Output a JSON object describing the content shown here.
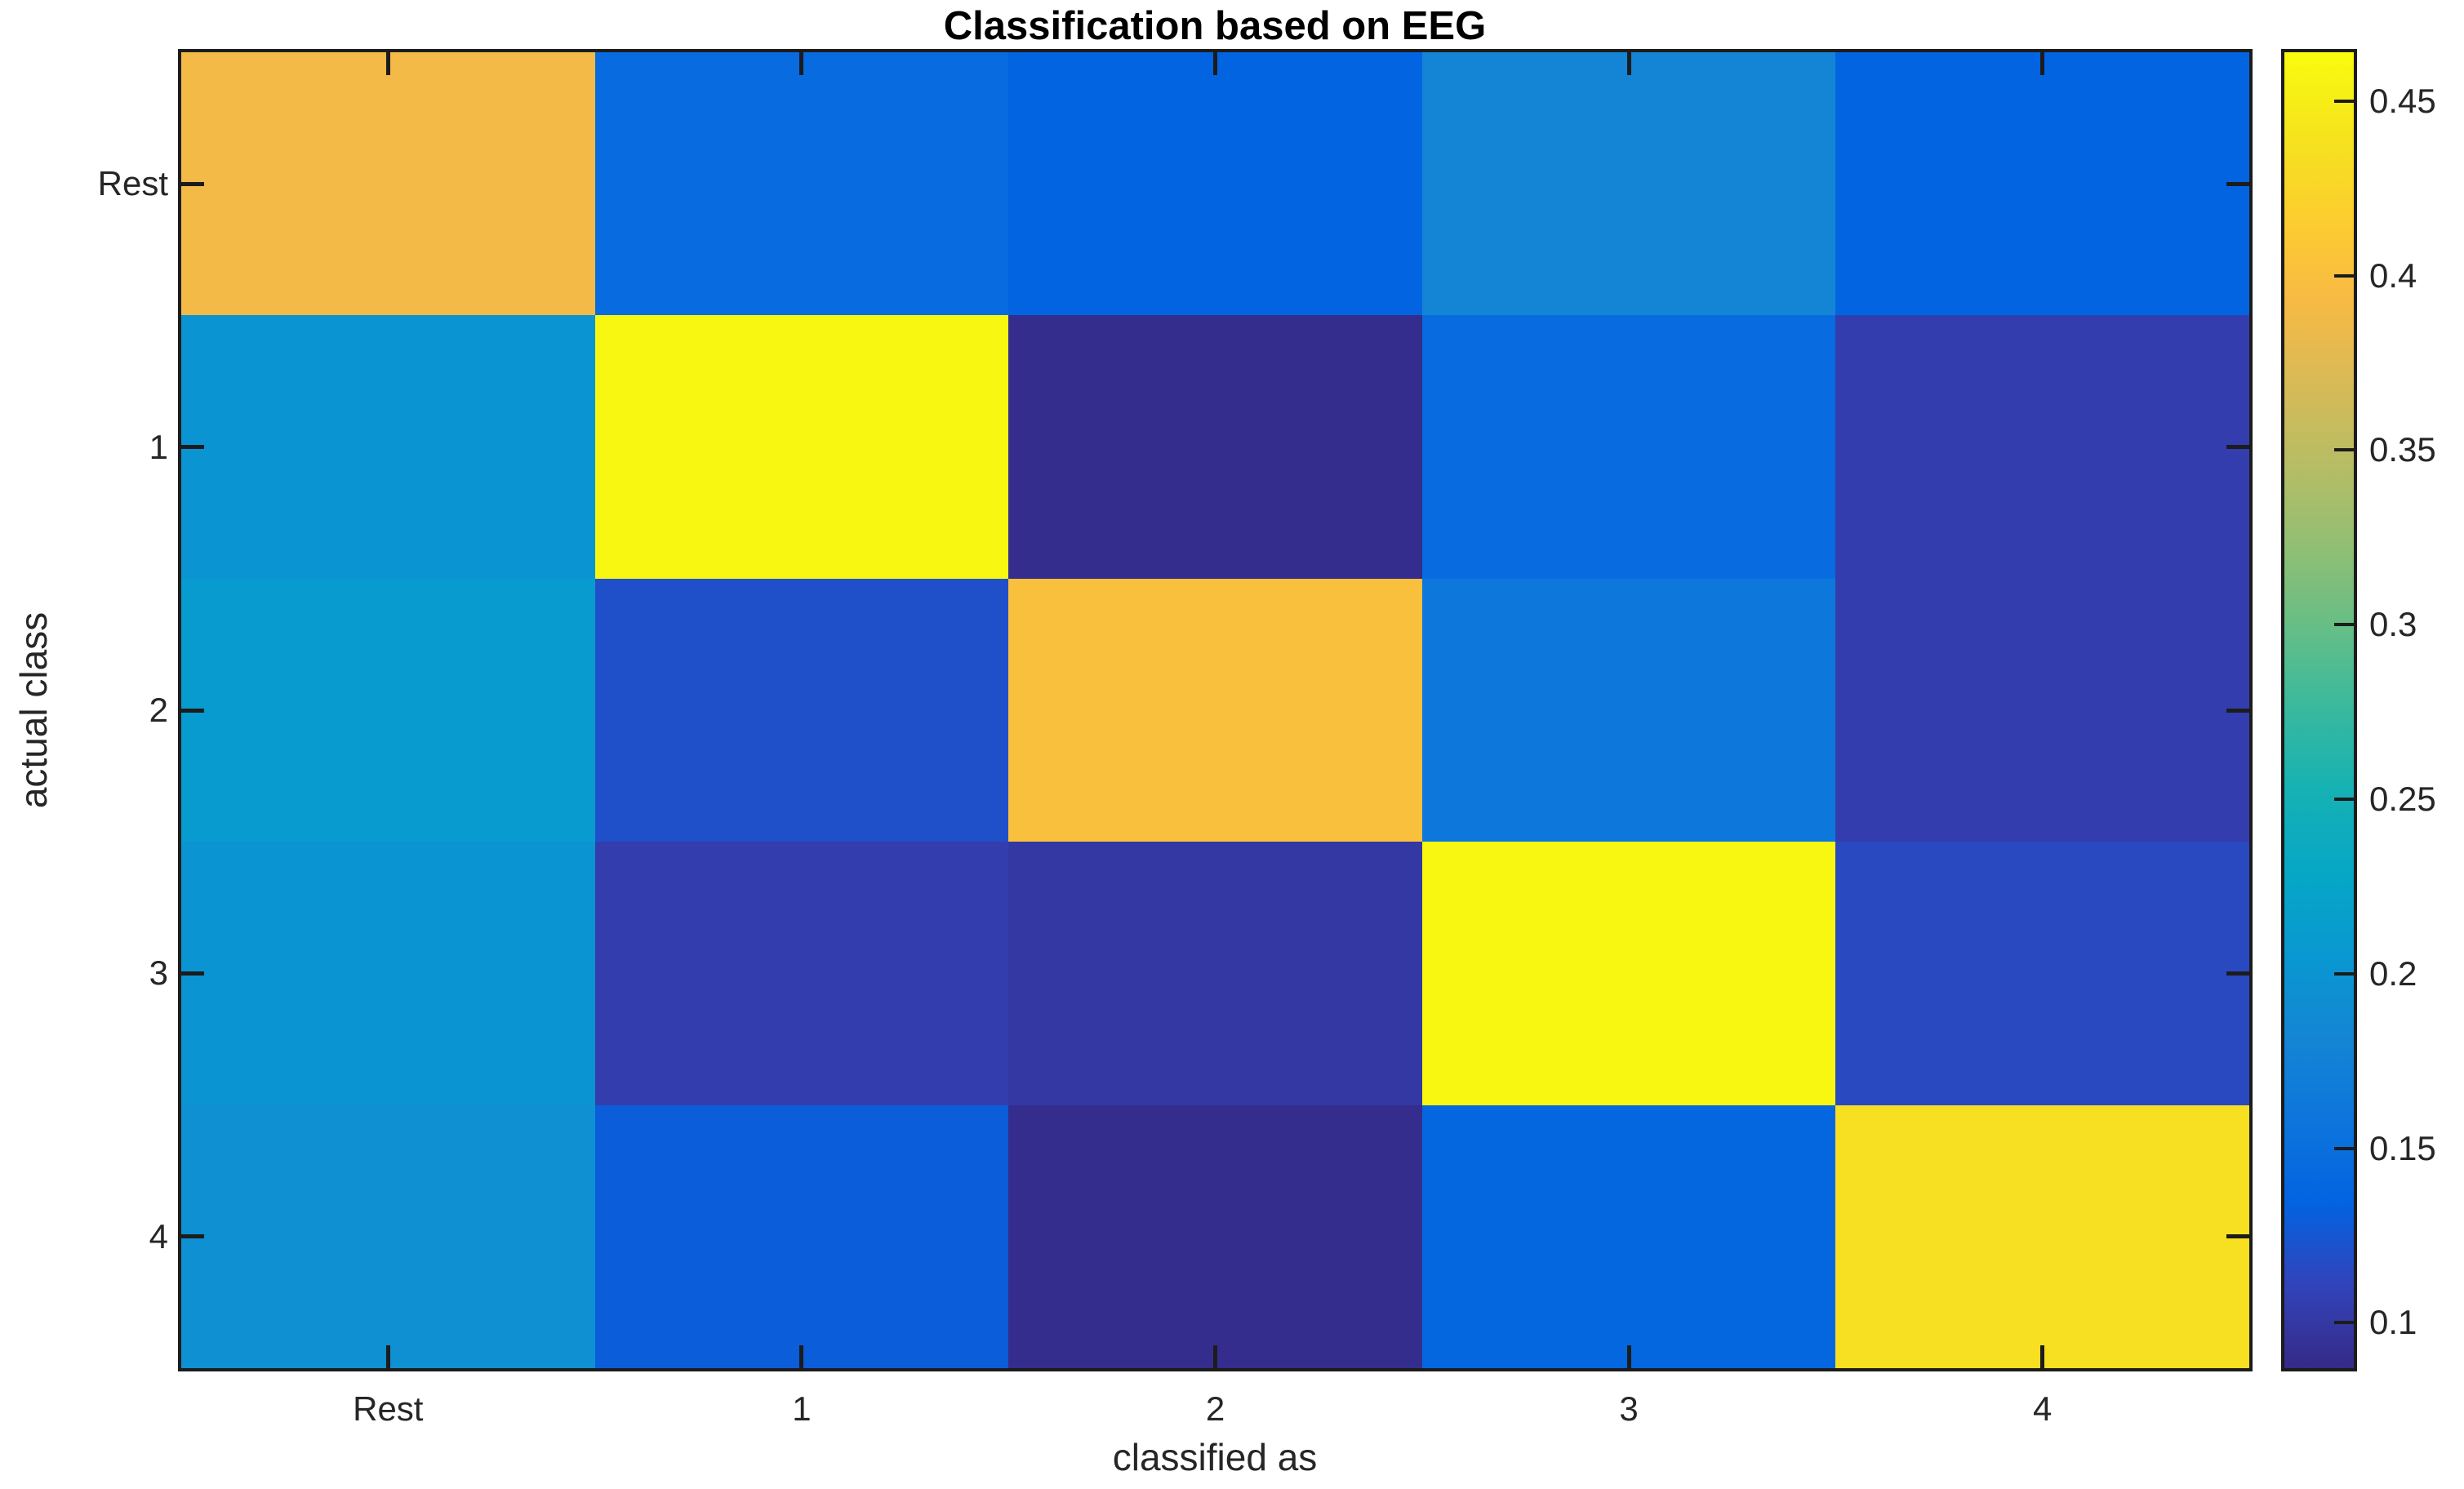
{
  "figure": {
    "background_color": "#ffffff",
    "axis_color": "#1c1c1c",
    "text_color": "#262626"
  },
  "chart_data": {
    "type": "heatmap",
    "title": "Classification based on EEG",
    "xlabel": "classified as",
    "ylabel": "actual class",
    "x_tick_labels": [
      "Rest",
      "1",
      "2",
      "3",
      "4"
    ],
    "y_tick_labels": [
      "Rest",
      "1",
      "2",
      "3",
      "4"
    ],
    "values": [
      [
        0.39,
        0.145,
        0.135,
        0.18,
        0.135
      ],
      [
        0.2,
        0.46,
        0.09,
        0.145,
        0.105
      ],
      [
        0.21,
        0.12,
        0.4,
        0.16,
        0.105
      ],
      [
        0.2,
        0.105,
        0.1,
        0.46,
        0.115
      ],
      [
        0.195,
        0.13,
        0.09,
        0.14,
        0.435
      ]
    ],
    "color_limits": [
      0.087,
      0.464
    ],
    "grid": false,
    "colorbar": {
      "position": "right",
      "ticks": [
        0.1,
        0.15,
        0.2,
        0.25,
        0.3,
        0.35,
        0.4,
        0.45
      ],
      "tick_labels": [
        "0.1",
        "0.15",
        "0.2",
        "0.25",
        "0.3",
        "0.35",
        "0.4",
        "0.45"
      ]
    },
    "colormap": "parula",
    "colormap_stops": [
      "#352a87",
      "#3243ba",
      "#0363e1",
      "#0d75dc",
      "#1485d4",
      "#0998d1",
      "#06a7c6",
      "#15b1b4",
      "#38b99e",
      "#65be86",
      "#92bf73",
      "#b7bd64",
      "#d9ba56",
      "#f8ba44",
      "#fcce2e",
      "#f5e41d",
      "#f9fb0e"
    ]
  }
}
